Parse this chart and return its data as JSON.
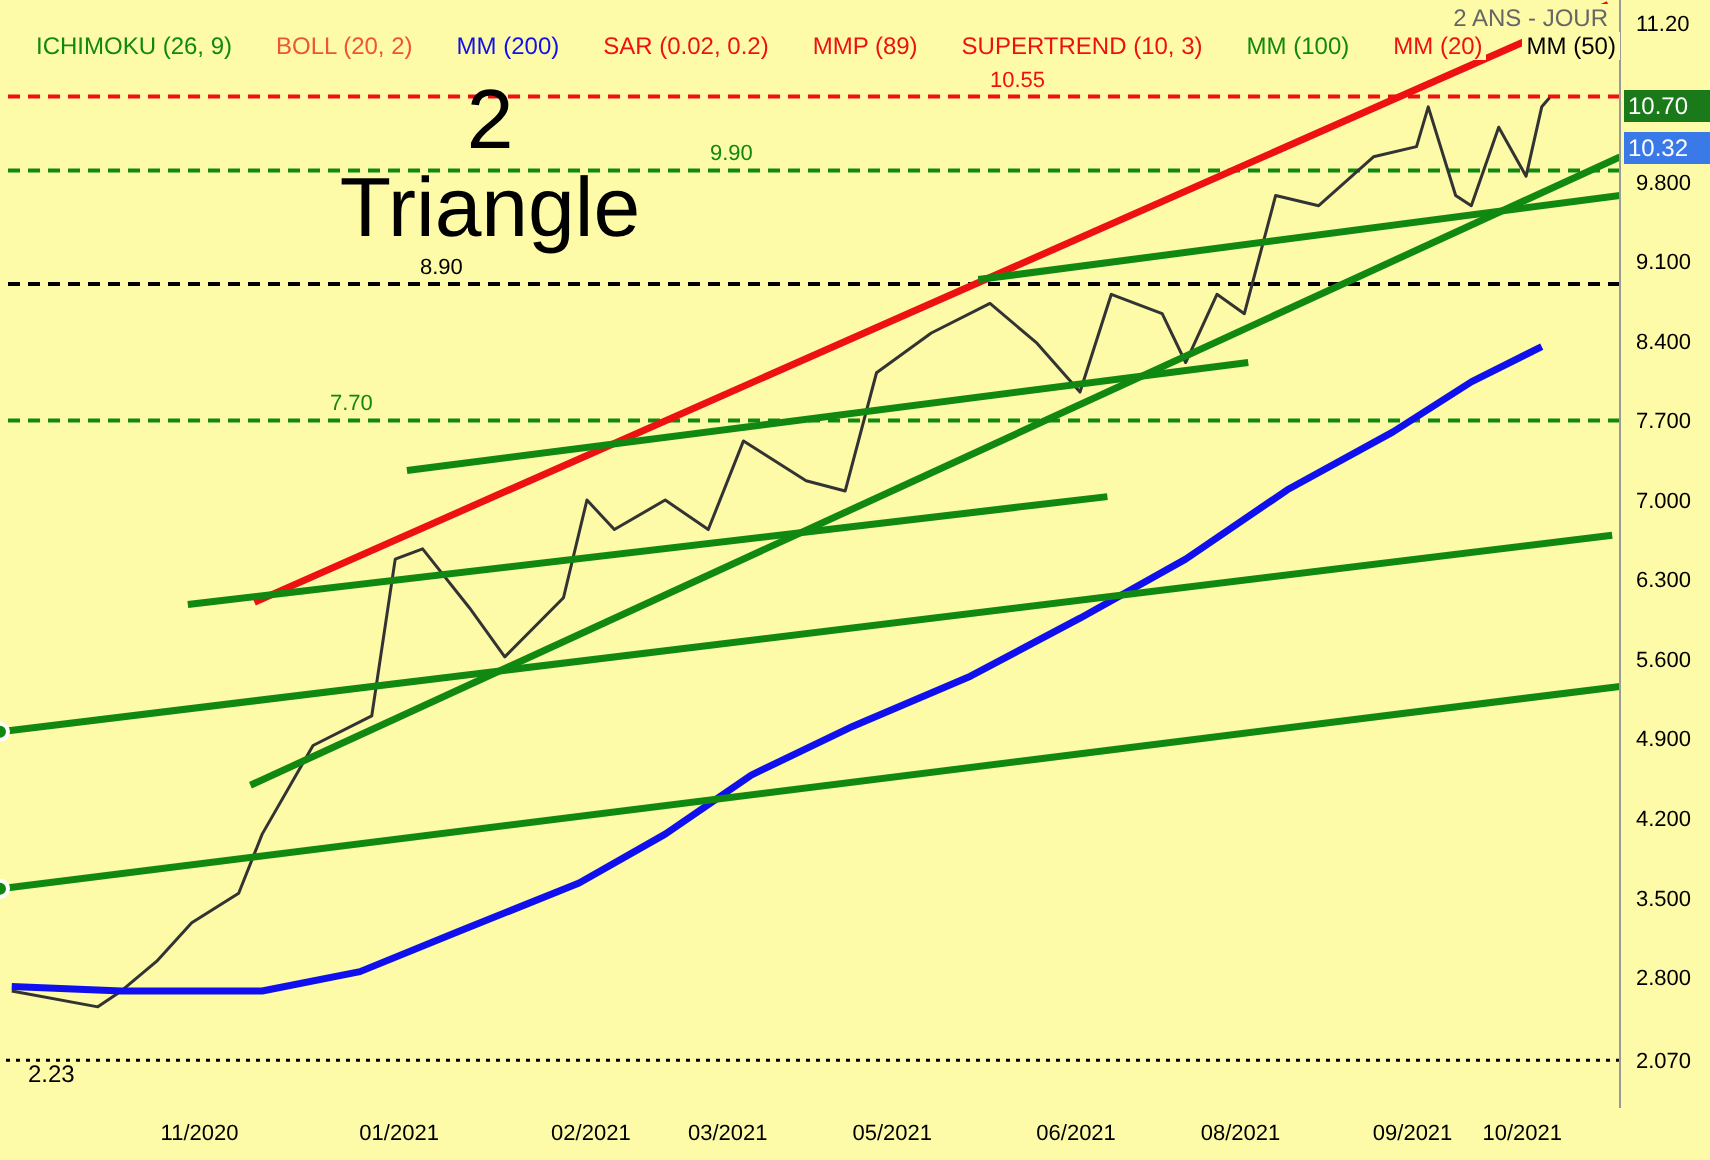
{
  "chart_data": {
    "type": "line",
    "title": "2 Triangle",
    "subtitle": "2 ANS - JOUR",
    "xlim": [
      "2020-09-26",
      "2021-11-14"
    ],
    "xticks": [
      {
        "value": "2020-11-16",
        "label": "11/2020"
      },
      {
        "value": "2021-01-06",
        "label": "01/2021"
      },
      {
        "value": "2021-02-24",
        "label": "02/2021"
      },
      {
        "value": "2021-03-31",
        "label": "03/2021"
      },
      {
        "value": "2021-05-12",
        "label": "05/2021"
      },
      {
        "value": "2021-06-28",
        "label": "06/2021"
      },
      {
        "value": "2021-08-09",
        "label": "08/2021"
      },
      {
        "value": "2021-09-22",
        "label": "09/2021"
      },
      {
        "value": "2021-10-20",
        "label": "10/2021"
      }
    ],
    "ylim": [
      1.65,
      11.4
    ],
    "yticks": [
      {
        "value": 2.07,
        "label": "2.070"
      },
      {
        "value": 2.8,
        "label": "2.800"
      },
      {
        "value": 3.5,
        "label": "3.500"
      },
      {
        "value": 4.2,
        "label": "4.200"
      },
      {
        "value": 4.9,
        "label": "4.900"
      },
      {
        "value": 5.6,
        "label": "5.600"
      },
      {
        "value": 6.3,
        "label": "6.300"
      },
      {
        "value": 7.0,
        "label": "7.000"
      },
      {
        "value": 7.7,
        "label": "7.700"
      },
      {
        "value": 8.4,
        "label": "8.400"
      },
      {
        "value": 9.1,
        "label": "9.100"
      },
      {
        "value": 9.8,
        "label": "9.800"
      },
      {
        "value": 11.2,
        "label": "11.20"
      }
    ],
    "series": [
      {
        "color": "#333333",
        "x": [
          "2020-09-29",
          "2020-10-21",
          "2020-10-27",
          "2020-11-05",
          "2020-11-14",
          "2020-11-26",
          "2020-12-02",
          "2020-12-15",
          "2020-12-30",
          "2021-01-05",
          "2021-01-12",
          "2021-01-24",
          "2021-02-02",
          "2021-02-17",
          "2021-02-23",
          "2021-03-02",
          "2021-03-15",
          "2021-03-26",
          "2021-04-04",
          "2021-04-20",
          "2021-04-30",
          "2021-05-08",
          "2021-05-22",
          "2021-06-06",
          "2021-06-18",
          "2021-06-29",
          "2021-07-07",
          "2021-07-20",
          "2021-07-26",
          "2021-08-03",
          "2021-08-10",
          "2021-08-18",
          "2021-08-29",
          "2021-09-12",
          "2021-09-23",
          "2021-09-26",
          "2021-10-03",
          "2021-10-07",
          "2021-10-14",
          "2021-10-21",
          "2021-10-25",
          "2021-10-27"
        ],
        "values": [
          2.68,
          2.54,
          2.68,
          2.94,
          3.28,
          3.54,
          4.06,
          4.84,
          5.1,
          6.48,
          6.57,
          6.05,
          5.62,
          6.14,
          7.0,
          6.74,
          7.0,
          6.74,
          7.52,
          7.17,
          7.08,
          8.12,
          8.47,
          8.73,
          8.38,
          7.95,
          8.81,
          8.64,
          8.21,
          8.81,
          8.64,
          9.68,
          9.59,
          10.02,
          10.11,
          10.46,
          9.68,
          9.59,
          10.28,
          9.85,
          10.46,
          10.54
        ]
      },
      {
        "color": "#1010ee",
        "x": [
          "2020-09-29",
          "2020-10-27",
          "2020-12-02",
          "2020-12-27",
          "2021-01-21",
          "2021-02-21",
          "2021-03-15",
          "2021-04-06",
          "2021-05-02",
          "2021-06-01",
          "2021-06-29",
          "2021-07-26",
          "2021-08-21",
          "2021-09-17",
          "2021-10-07",
          "2021-10-25"
        ],
        "values": [
          2.72,
          2.68,
          2.68,
          2.85,
          3.2,
          3.63,
          4.06,
          4.58,
          5.01,
          5.45,
          5.96,
          6.48,
          7.09,
          7.6,
          8.04,
          8.35
        ]
      },
      {
        "color": "#ee1111",
        "x": [
          "2020-11-30",
          "2021-11-11"
        ],
        "values": [
          6.1,
          11.36
        ]
      },
      {
        "color": "#118811",
        "x": [
          "2020-11-29",
          "2021-11-14"
        ],
        "values": [
          4.49,
          10.02
        ]
      },
      {
        "color": "#118811",
        "x": [
          "2020-09-26",
          "2021-11-14"
        ],
        "values": [
          3.58,
          5.36
        ]
      },
      {
        "color": "#118811",
        "x": [
          "2020-09-26",
          "2021-11-12"
        ],
        "values": [
          4.96,
          6.69
        ]
      },
      {
        "color": "#118811",
        "x": [
          "2021-01-08",
          "2021-08-11"
        ],
        "values": [
          7.26,
          8.21
        ]
      },
      {
        "color": "#118811",
        "x": [
          "2020-11-13",
          "2021-07-06"
        ],
        "values": [
          6.08,
          7.03
        ]
      },
      {
        "color": "#118811",
        "x": [
          "2021-06-03",
          "2021-11-14"
        ],
        "values": [
          8.94,
          9.68
        ]
      }
    ],
    "ref_lines": [
      {
        "axis": "y",
        "value": 10.55,
        "label": "10.55",
        "color": "#ee1111",
        "line_style": "dashed"
      },
      {
        "axis": "y",
        "value": 9.9,
        "label": "9.90",
        "color": "#118811",
        "line_style": "dashed"
      },
      {
        "axis": "y",
        "value": 8.9,
        "label": "8.90",
        "color": "#000000",
        "line_style": "dashed"
      },
      {
        "axis": "y",
        "value": 7.7,
        "label": "7.70",
        "color": "#118811",
        "line_style": "dashed"
      },
      {
        "axis": "y",
        "value": 2.07,
        "color": "#000000",
        "line_style": "dotted"
      }
    ],
    "annotations": [
      "ICHIMOKU (26, 9)",
      "BOLL (20, 2)",
      "MM (200)",
      "SAR (0.02, 0.2)",
      "MMP (89)",
      "SUPERTREND (10, 3)",
      "MM (100)",
      "MM (20)",
      "MM (50)",
      "10.70",
      "10.32",
      "2.23"
    ]
  }
}
